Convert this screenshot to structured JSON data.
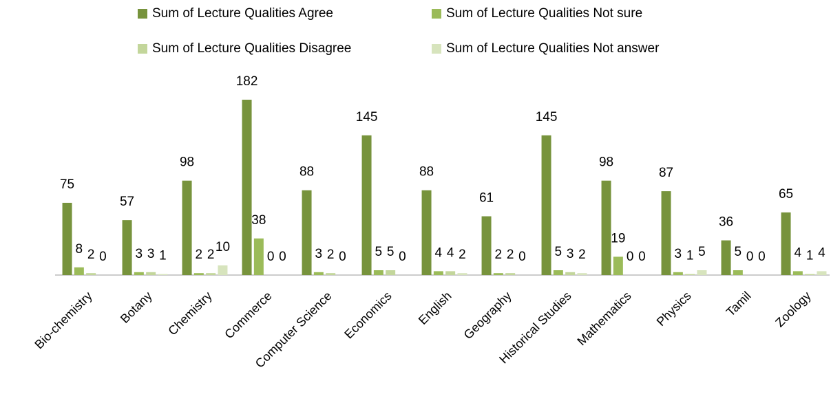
{
  "chart_data": {
    "type": "bar",
    "categories": [
      "Bio-chemistry",
      "Botany",
      "Chemistry",
      "Commerce",
      "Computer Science",
      "Economics",
      "English",
      "Geography",
      "Historical Studies",
      "Mathematics",
      "Physics",
      "Tamil",
      "Zoology"
    ],
    "series": [
      {
        "name": "Sum of Lecture Qualities Agree",
        "color": "#77933c",
        "values": [
          75,
          57,
          98,
          182,
          88,
          145,
          88,
          61,
          145,
          98,
          87,
          36,
          65
        ]
      },
      {
        "name": "Sum of Lecture Qualities Not sure",
        "color": "#9bbb59",
        "values": [
          8,
          3,
          2,
          38,
          3,
          5,
          4,
          2,
          5,
          19,
          3,
          5,
          4
        ]
      },
      {
        "name": "Sum of Lecture Qualities Disagree",
        "color": "#c3d69b",
        "values": [
          2,
          3,
          2,
          0,
          2,
          5,
          4,
          2,
          3,
          0,
          1,
          0,
          1
        ]
      },
      {
        "name": "Sum of Lecture Qualities Not answer",
        "color": "#d7e4bd",
        "values": [
          0,
          1,
          10,
          0,
          0,
          0,
          2,
          0,
          2,
          0,
          5,
          0,
          4
        ]
      }
    ]
  }
}
